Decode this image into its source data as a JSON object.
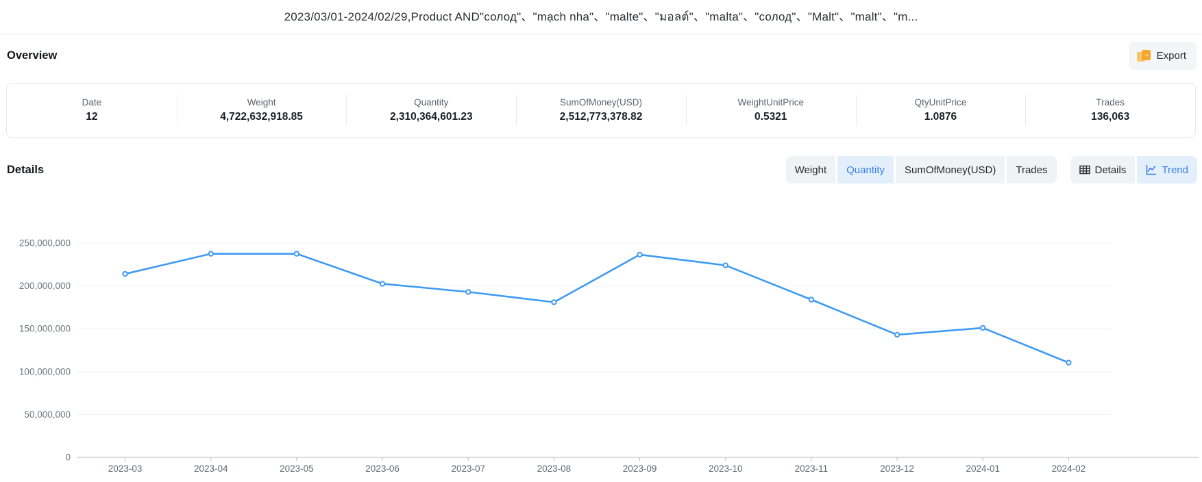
{
  "header": {
    "title": "2023/03/01-2024/02/29,Product AND\"солод\"、\"mạch nha\"、\"malte\"、\"มอลต์\"、\"malta\"、\"солод\"、\"Malt\"、\"malt\"、\"m..."
  },
  "overview": {
    "heading": "Overview",
    "export_label": "Export",
    "stats": [
      {
        "label": "Date",
        "value": "12"
      },
      {
        "label": "Weight",
        "value": "4,722,632,918.85"
      },
      {
        "label": "Quantity",
        "value": "2,310,364,601.23"
      },
      {
        "label": "SumOfMoney(USD)",
        "value": "2,512,773,378.82"
      },
      {
        "label": "WeightUnitPrice",
        "value": "0.5321"
      },
      {
        "label": "QtyUnitPrice",
        "value": "1.0876"
      },
      {
        "label": "Trades",
        "value": "136,063"
      }
    ]
  },
  "details": {
    "heading": "Details",
    "metric_tabs": [
      {
        "label": "Weight",
        "selected": false
      },
      {
        "label": "Quantity",
        "selected": true
      },
      {
        "label": "SumOfMoney(USD)",
        "selected": false
      },
      {
        "label": "Trades",
        "selected": false
      }
    ],
    "view_tabs": [
      {
        "label": "Details",
        "icon": "table-icon",
        "selected": false
      },
      {
        "label": "Trend",
        "icon": "trend-icon",
        "selected": true
      }
    ]
  },
  "chart_data": {
    "type": "line",
    "title": "",
    "xlabel": "",
    "ylabel": "",
    "categories": [
      "2023-03",
      "2023-04",
      "2023-05",
      "2023-06",
      "2023-07",
      "2023-08",
      "2023-09",
      "2023-10",
      "2023-11",
      "2023-12",
      "2024-01",
      "2024-02"
    ],
    "series": [
      {
        "name": "Quantity",
        "values": [
          214000000,
          237500000,
          237500000,
          202500000,
          193000000,
          181000000,
          236500000,
          224000000,
          184000000,
          143000000,
          151000000,
          110500000
        ]
      }
    ],
    "ylim": [
      0,
      250000000
    ],
    "ytick_interval": 50000000,
    "grid": true,
    "legend_position": "none",
    "line_color": "#3f9bf2",
    "marker": "hollow-circle"
  },
  "colors": {
    "accent": "#3a7cf0",
    "selected_tab_bg": "#e3f0fc",
    "tab_bg": "#f1f2f6",
    "export_icon": "#f5a82e",
    "gridline": "#edf0f5",
    "axis_line": "#b4b8c0"
  }
}
